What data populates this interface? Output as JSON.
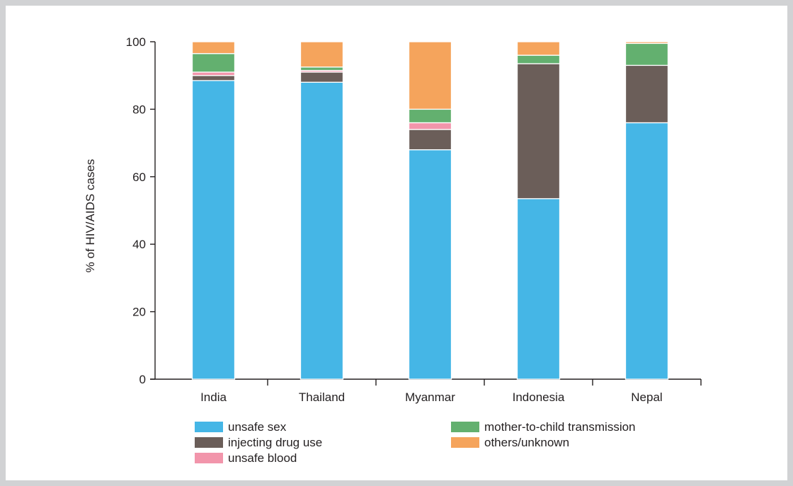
{
  "chart_data": {
    "type": "bar",
    "stacked": true,
    "categories": [
      "India",
      "Thailand",
      "Myanmar",
      "Indonesia",
      "Nepal"
    ],
    "ylabel": "% of HIV/AIDS cases",
    "ylim": [
      0,
      100
    ],
    "yticks": [
      0,
      20,
      40,
      60,
      80,
      100
    ],
    "grid": false,
    "legend_position": "bottom",
    "series": [
      {
        "name": "unsafe sex",
        "color": "#45b6e6",
        "values": [
          88.5,
          88,
          68,
          53.5,
          76
        ]
      },
      {
        "name": "injecting drug use",
        "color": "#6b5e59",
        "values": [
          1.5,
          3,
          6,
          40,
          17
        ]
      },
      {
        "name": "unsafe blood",
        "color": "#f295ab",
        "values": [
          1,
          0.5,
          2,
          0,
          0
        ]
      },
      {
        "name": "mother-to-child transmission",
        "color": "#63b06f",
        "values": [
          5.5,
          1,
          4,
          2.5,
          6.5
        ]
      },
      {
        "name": "others/unknown",
        "color": "#f5a45c",
        "values": [
          3.5,
          7.5,
          20,
          4,
          0.5
        ]
      }
    ]
  }
}
